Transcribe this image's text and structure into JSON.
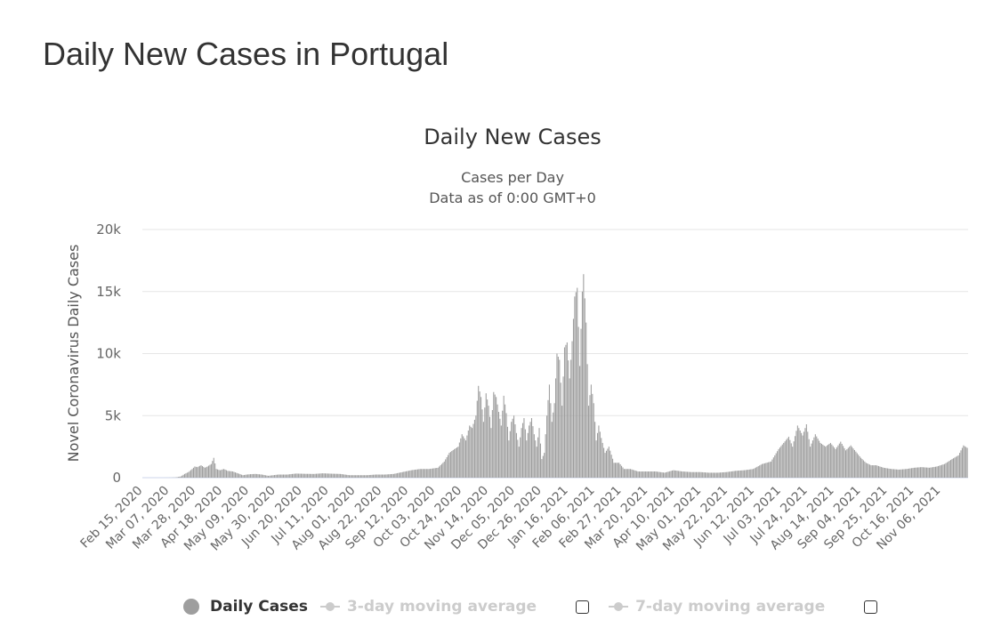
{
  "page": {
    "title": "Daily New Cases in Portugal"
  },
  "chart_data": {
    "type": "bar",
    "title": "Daily New Cases",
    "subtitle_line1": "Cases per Day",
    "subtitle_line2": "Data as of 0:00 GMT+0",
    "ylabel": "Novel Coronavirus Daily Cases",
    "xlabel": "",
    "ylim": [
      0,
      20000
    ],
    "yticks": [
      "0",
      "5k",
      "10k",
      "15k",
      "20k"
    ],
    "grid": true,
    "colors": {
      "bars": "#9e9e9e",
      "grid": "#e6e6e6",
      "baseline": "#ccd6eb"
    },
    "x_start": "2020-02-15",
    "x_end": "2021-11-27",
    "x_tick_labels": [
      "Feb 15, 2020",
      "Mar 07, 2020",
      "Mar 28, 2020",
      "Apr 18, 2020",
      "May 09, 2020",
      "May 30, 2020",
      "Jun 20, 2020",
      "Jul 11, 2020",
      "Aug 01, 2020",
      "Aug 22, 2020",
      "Sep 12, 2020",
      "Oct 03, 2020",
      "Oct 24, 2020",
      "Nov 14, 2020",
      "Dec 05, 2020",
      "Dec 26, 2020",
      "Jan 16, 2021",
      "Feb 06, 2021",
      "Feb 27, 2021",
      "Mar 20, 2021",
      "Apr 10, 2021",
      "May 01, 2021",
      "May 22, 2021",
      "Jun 12, 2021",
      "Jul 03, 2021",
      "Jul 24, 2021",
      "Aug 14, 2021",
      "Sep 04, 2021",
      "Sep 25, 2021",
      "Oct 16, 2021",
      "Nov 06, 2021"
    ],
    "series": [
      {
        "name": "Daily Cases",
        "points": [
          [
            "2020-02-15",
            0
          ],
          [
            "2020-03-02",
            0
          ],
          [
            "2020-03-08",
            5
          ],
          [
            "2020-03-12",
            20
          ],
          [
            "2020-03-16",
            100
          ],
          [
            "2020-03-19",
            300
          ],
          [
            "2020-03-22",
            450
          ],
          [
            "2020-03-25",
            700
          ],
          [
            "2020-03-27",
            900
          ],
          [
            "2020-03-29",
            850
          ],
          [
            "2020-04-01",
            1000
          ],
          [
            "2020-04-04",
            800
          ],
          [
            "2020-04-06",
            900
          ],
          [
            "2020-04-09",
            1100
          ],
          [
            "2020-04-11",
            1600
          ],
          [
            "2020-04-13",
            700
          ],
          [
            "2020-04-16",
            600
          ],
          [
            "2020-04-19",
            700
          ],
          [
            "2020-04-22",
            550
          ],
          [
            "2020-04-26",
            500
          ],
          [
            "2020-04-30",
            350
          ],
          [
            "2020-05-04",
            200
          ],
          [
            "2020-05-07",
            250
          ],
          [
            "2020-05-10",
            280
          ],
          [
            "2020-05-14",
            300
          ],
          [
            "2020-05-19",
            250
          ],
          [
            "2020-05-24",
            150
          ],
          [
            "2020-06-01",
            250
          ],
          [
            "2020-06-08",
            250
          ],
          [
            "2020-06-15",
            330
          ],
          [
            "2020-06-22",
            310
          ],
          [
            "2020-06-29",
            300
          ],
          [
            "2020-07-06",
            350
          ],
          [
            "2020-07-13",
            320
          ],
          [
            "2020-07-20",
            300
          ],
          [
            "2020-07-27",
            200
          ],
          [
            "2020-08-03",
            200
          ],
          [
            "2020-08-10",
            200
          ],
          [
            "2020-08-17",
            250
          ],
          [
            "2020-08-24",
            250
          ],
          [
            "2020-08-31",
            300
          ],
          [
            "2020-09-07",
            450
          ],
          [
            "2020-09-14",
            600
          ],
          [
            "2020-09-21",
            700
          ],
          [
            "2020-09-28",
            700
          ],
          [
            "2020-10-05",
            800
          ],
          [
            "2020-10-10",
            1300
          ],
          [
            "2020-10-14",
            2000
          ],
          [
            "2020-10-18",
            2300
          ],
          [
            "2020-10-21",
            2500
          ],
          [
            "2020-10-24",
            3500
          ],
          [
            "2020-10-27",
            3000
          ],
          [
            "2020-10-30",
            4200
          ],
          [
            "2020-11-01",
            4000
          ],
          [
            "2020-11-04",
            5000
          ],
          [
            "2020-11-06",
            7400
          ],
          [
            "2020-11-08",
            6500
          ],
          [
            "2020-11-10",
            4500
          ],
          [
            "2020-11-12",
            6800
          ],
          [
            "2020-11-14",
            5800
          ],
          [
            "2020-11-16",
            4000
          ],
          [
            "2020-11-18",
            6900
          ],
          [
            "2020-11-20",
            6500
          ],
          [
            "2020-11-22",
            5300
          ],
          [
            "2020-11-24",
            4200
          ],
          [
            "2020-11-26",
            6600
          ],
          [
            "2020-11-28",
            5200
          ],
          [
            "2020-11-30",
            3000
          ],
          [
            "2020-12-02",
            4500
          ],
          [
            "2020-12-04",
            5000
          ],
          [
            "2020-12-06",
            3600
          ],
          [
            "2020-12-08",
            2500
          ],
          [
            "2020-12-10",
            4000
          ],
          [
            "2020-12-12",
            4800
          ],
          [
            "2020-12-14",
            3000
          ],
          [
            "2020-12-16",
            4200
          ],
          [
            "2020-12-18",
            4800
          ],
          [
            "2020-12-20",
            3500
          ],
          [
            "2020-12-22",
            2500
          ],
          [
            "2020-12-24",
            4000
          ],
          [
            "2020-12-26",
            1500
          ],
          [
            "2020-12-28",
            2000
          ],
          [
            "2020-12-30",
            5000
          ],
          [
            "2021-01-01",
            7500
          ],
          [
            "2021-01-03",
            4500
          ],
          [
            "2021-01-05",
            6000
          ],
          [
            "2021-01-07",
            10000
          ],
          [
            "2021-01-09",
            9500
          ],
          [
            "2021-01-11",
            5800
          ],
          [
            "2021-01-13",
            10500
          ],
          [
            "2021-01-15",
            10900
          ],
          [
            "2021-01-17",
            8000
          ],
          [
            "2021-01-19",
            11000
          ],
          [
            "2021-01-21",
            14600
          ],
          [
            "2021-01-23",
            15300
          ],
          [
            "2021-01-25",
            9000
          ],
          [
            "2021-01-27",
            15000
          ],
          [
            "2021-01-28",
            16400
          ],
          [
            "2021-01-30",
            12500
          ],
          [
            "2021-02-01",
            5800
          ],
          [
            "2021-02-03",
            7500
          ],
          [
            "2021-02-05",
            6000
          ],
          [
            "2021-02-07",
            3000
          ],
          [
            "2021-02-09",
            4200
          ],
          [
            "2021-02-11",
            3200
          ],
          [
            "2021-02-14",
            2000
          ],
          [
            "2021-02-17",
            2500
          ],
          [
            "2021-02-21",
            1200
          ],
          [
            "2021-02-25",
            1200
          ],
          [
            "2021-03-01",
            700
          ],
          [
            "2021-03-06",
            700
          ],
          [
            "2021-03-12",
            500
          ],
          [
            "2021-03-19",
            500
          ],
          [
            "2021-03-26",
            500
          ],
          [
            "2021-04-02",
            400
          ],
          [
            "2021-04-09",
            600
          ],
          [
            "2021-04-16",
            500
          ],
          [
            "2021-04-23",
            450
          ],
          [
            "2021-04-30",
            450
          ],
          [
            "2021-05-07",
            400
          ],
          [
            "2021-05-14",
            400
          ],
          [
            "2021-05-21",
            450
          ],
          [
            "2021-05-28",
            550
          ],
          [
            "2021-06-04",
            600
          ],
          [
            "2021-06-11",
            700
          ],
          [
            "2021-06-18",
            1100
          ],
          [
            "2021-06-25",
            1300
          ],
          [
            "2021-07-01",
            2300
          ],
          [
            "2021-07-05",
            2800
          ],
          [
            "2021-07-09",
            3300
          ],
          [
            "2021-07-12",
            2500
          ],
          [
            "2021-07-16",
            4200
          ],
          [
            "2021-07-20",
            3400
          ],
          [
            "2021-07-23",
            4300
          ],
          [
            "2021-07-26",
            2500
          ],
          [
            "2021-07-30",
            3500
          ],
          [
            "2021-08-03",
            2800
          ],
          [
            "2021-08-07",
            2500
          ],
          [
            "2021-08-11",
            2800
          ],
          [
            "2021-08-15",
            2300
          ],
          [
            "2021-08-19",
            2900
          ],
          [
            "2021-08-23",
            2200
          ],
          [
            "2021-08-27",
            2600
          ],
          [
            "2021-08-31",
            2100
          ],
          [
            "2021-09-04",
            1600
          ],
          [
            "2021-09-08",
            1200
          ],
          [
            "2021-09-12",
            1000
          ],
          [
            "2021-09-16",
            1000
          ],
          [
            "2021-09-22",
            800
          ],
          [
            "2021-09-28",
            700
          ],
          [
            "2021-10-04",
            650
          ],
          [
            "2021-10-10",
            700
          ],
          [
            "2021-10-16",
            800
          ],
          [
            "2021-10-22",
            850
          ],
          [
            "2021-10-28",
            800
          ],
          [
            "2021-11-03",
            900
          ],
          [
            "2021-11-09",
            1100
          ],
          [
            "2021-11-15",
            1500
          ],
          [
            "2021-11-20",
            1800
          ],
          [
            "2021-11-24",
            2600
          ],
          [
            "2021-11-27",
            2400
          ]
        ]
      },
      {
        "name": "3-day moving average"
      },
      {
        "name": "7-day moving average"
      }
    ]
  },
  "legend": {
    "daily_label": "Daily Cases",
    "avg3_label": "3-day moving average",
    "avg7_label": "7-day moving average"
  }
}
